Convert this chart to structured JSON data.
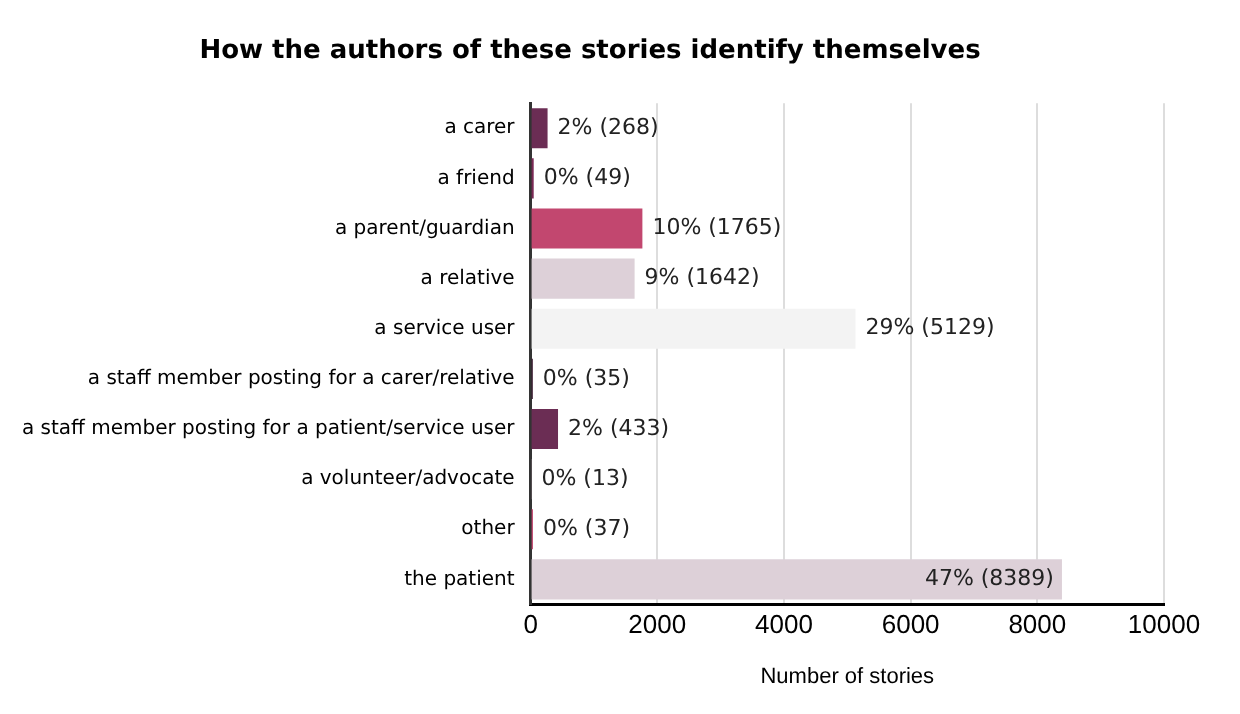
{
  "chart_data": {
    "type": "bar",
    "orientation": "horizontal",
    "title": "How the authors of these stories identify themselves",
    "xlabel": "Number of stories",
    "categories": [
      "a carer",
      "a friend",
      "a parent/guardian",
      "a relative",
      "a service user",
      "a staff member posting for a carer/relative",
      "a staff member posting for a patient/service user",
      "a volunteer/advocate",
      "other",
      "the patient"
    ],
    "values": [
      268,
      49,
      1765,
      1642,
      5129,
      35,
      433,
      13,
      37,
      8389
    ],
    "colors": [
      "#6b2d54",
      "#7a2a55",
      "#c2476f",
      "#ddd0d8",
      "#f3f3f3",
      "#3a1a30",
      "#6b2d54",
      "#e8c8d8",
      "#c2476f",
      "#ddd0d8"
    ],
    "value_labels": [
      "2% (268)",
      "0% (49)",
      "10% (1765)",
      "9% (1642)",
      "29% (5129)",
      "0% (35)",
      "2% (433)",
      "0% (13)",
      "0% (37)",
      "47% (8389)"
    ],
    "xlim": [
      0,
      10000
    ],
    "xticks": [
      0,
      2000,
      4000,
      6000,
      8000,
      10000
    ],
    "grid": "x",
    "legend": false
  }
}
